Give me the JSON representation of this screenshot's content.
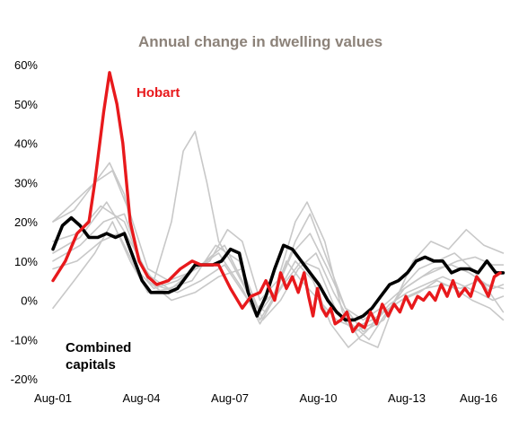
{
  "chart_data": {
    "type": "line",
    "title": "Annual change in dwelling values",
    "xlabel": "",
    "ylabel": "",
    "x_tick_labels": [
      "Aug-01",
      "Aug-04",
      "Aug-07",
      "Aug-10",
      "Aug-13",
      "Aug-16"
    ],
    "x_tick_years": [
      2001.58,
      2004.58,
      2007.58,
      2010.58,
      2013.58,
      2016.58
    ],
    "xlim": [
      2001.58,
      2016.9
    ],
    "y_tick_labels": [
      "60%",
      "50%",
      "40%",
      "30%",
      "20%",
      "10%",
      "0%",
      "-10%",
      "-20%"
    ],
    "ylim": [
      -20,
      60
    ],
    "grid": false,
    "annotations": [
      {
        "text": "Hobart",
        "series": "Hobart",
        "color": "#e8191c"
      },
      {
        "text": "Combined",
        "series": "Combined capitals",
        "color": "#000000"
      },
      {
        "text": "capitals",
        "series": "Combined capitals",
        "color": "#000000"
      }
    ],
    "series": [
      {
        "name": "Hobart",
        "color": "#e8191c",
        "x": [
          2001.58,
          2002.0,
          2002.4,
          2002.8,
          2003.0,
          2003.3,
          2003.5,
          2003.75,
          2003.95,
          2004.2,
          2004.5,
          2004.8,
          2005.1,
          2005.5,
          2005.9,
          2006.3,
          2006.6,
          2006.9,
          2007.2,
          2007.6,
          2008.0,
          2008.3,
          2008.6,
          2008.8,
          2009.1,
          2009.3,
          2009.5,
          2009.7,
          2009.9,
          2010.1,
          2010.25,
          2010.4,
          2010.55,
          2010.7,
          2010.85,
          2011.0,
          2011.15,
          2011.35,
          2011.55,
          2011.75,
          2011.95,
          2012.15,
          2012.35,
          2012.55,
          2012.75,
          2012.95,
          2013.15,
          2013.35,
          2013.55,
          2013.75,
          2013.95,
          2014.15,
          2014.35,
          2014.55,
          2014.75,
          2014.95,
          2015.15,
          2015.35,
          2015.55,
          2015.75,
          2015.95,
          2016.15,
          2016.35,
          2016.55,
          2016.75
        ],
        "values": [
          5,
          10,
          17,
          20,
          30,
          48,
          58,
          50,
          40,
          20,
          10,
          6,
          4,
          5,
          8,
          10,
          9,
          9,
          9,
          3,
          -2,
          1,
          2,
          5,
          0,
          7,
          3,
          6,
          2,
          7,
          1,
          -4,
          3,
          -2,
          -4,
          -2,
          -6,
          -5,
          -3,
          -8,
          -6,
          -7,
          -3,
          -6,
          -1,
          -4,
          -1,
          -3,
          1,
          -2,
          1,
          0,
          2,
          0,
          4,
          1,
          5,
          1,
          3,
          1,
          6,
          4,
          1,
          6,
          7
        ]
      },
      {
        "name": "Combined capitals",
        "color": "#000000",
        "x": [
          2001.58,
          2001.9,
          2002.2,
          2002.5,
          2002.8,
          2003.1,
          2003.4,
          2003.7,
          2004.0,
          2004.3,
          2004.6,
          2004.9,
          2005.2,
          2005.5,
          2005.8,
          2006.1,
          2006.4,
          2006.7,
          2007.0,
          2007.3,
          2007.6,
          2007.9,
          2008.2,
          2008.5,
          2008.8,
          2009.1,
          2009.4,
          2009.7,
          2010.0,
          2010.3,
          2010.6,
          2010.9,
          2011.2,
          2011.5,
          2011.8,
          2012.1,
          2012.4,
          2012.7,
          2013.0,
          2013.3,
          2013.6,
          2013.9,
          2014.2,
          2014.5,
          2014.8,
          2015.1,
          2015.4,
          2015.7,
          2016.0,
          2016.3,
          2016.6,
          2016.85
        ],
        "values": [
          13,
          19,
          21,
          19,
          16,
          16,
          17,
          16,
          17,
          11,
          5,
          2,
          2,
          2,
          3,
          6,
          9,
          9,
          9,
          10,
          13,
          12,
          2,
          -4,
          1,
          8,
          14,
          13,
          10,
          7,
          4,
          0,
          -3,
          -5,
          -5,
          -4,
          -2,
          1,
          4,
          5,
          7,
          10,
          11,
          10,
          10,
          7,
          8,
          8,
          7,
          10,
          7,
          7
        ]
      },
      {
        "name": "",
        "color": "#c8c8c8",
        "x": [
          2001.58,
          2002.3,
          2003.0,
          2003.5,
          2004.0,
          2004.5,
          2005.0,
          2005.6,
          2006.0,
          2006.4,
          2006.8,
          2007.2,
          2007.6,
          2008.1,
          2008.6,
          2009.0,
          2009.5,
          2010.0,
          2010.6,
          2011.2,
          2011.8,
          2012.4,
          2013.0,
          2013.6,
          2014.2,
          2014.8,
          2015.4,
          2016.0,
          2016.5,
          2016.85
        ],
        "values": [
          20,
          25,
          30,
          35,
          27,
          10,
          5,
          20,
          38,
          43,
          30,
          15,
          10,
          3,
          -5,
          0,
          10,
          5,
          0,
          -5,
          -7,
          -5,
          -2,
          1,
          3,
          4,
          3,
          5,
          3,
          4
        ]
      },
      {
        "name": "",
        "color": "#c8c8c8",
        "x": [
          2001.58,
          2002.3,
          2003.0,
          2003.6,
          2004.2,
          2004.8,
          2005.5,
          2006.2,
          2006.9,
          2007.5,
          2008.0,
          2008.6,
          2009.2,
          2009.8,
          2010.2,
          2010.8,
          2011.4,
          2012.0,
          2012.6,
          2013.2,
          2013.8,
          2014.4,
          2015.0,
          2015.6,
          2016.2,
          2016.85
        ],
        "values": [
          20,
          23,
          30,
          33,
          22,
          8,
          5,
          7,
          10,
          18,
          15,
          0,
          5,
          20,
          25,
          15,
          -3,
          -10,
          -12,
          0,
          10,
          15,
          13,
          18,
          14,
          12
        ]
      },
      {
        "name": "",
        "color": "#c8c8c8",
        "x": [
          2001.58,
          2002.4,
          2003.2,
          2003.8,
          2004.4,
          2005.0,
          2005.8,
          2006.6,
          2007.4,
          2008.0,
          2008.6,
          2009.2,
          2009.8,
          2010.3,
          2010.9,
          2011.5,
          2012.1,
          2012.8,
          2013.4,
          2014.0,
          2014.6,
          2015.2,
          2015.8,
          2016.3,
          2016.85
        ],
        "values": [
          8,
          10,
          15,
          17,
          8,
          3,
          5,
          9,
          14,
          5,
          -3,
          3,
          15,
          22,
          10,
          -2,
          -8,
          -5,
          3,
          8,
          10,
          12,
          8,
          3,
          -3
        ]
      },
      {
        "name": "",
        "color": "#c8c8c8",
        "x": [
          2001.58,
          2002.3,
          2003.0,
          2003.6,
          2004.2,
          2004.8,
          2005.6,
          2006.4,
          2007.2,
          2008.0,
          2008.6,
          2009.2,
          2009.8,
          2010.4,
          2011.0,
          2011.6,
          2012.2,
          2012.8,
          2013.4,
          2014.0,
          2014.6,
          2015.2,
          2015.8,
          2016.4,
          2016.85
        ],
        "values": [
          -2,
          5,
          12,
          20,
          10,
          2,
          3,
          8,
          12,
          3,
          -6,
          2,
          10,
          5,
          -6,
          -12,
          -8,
          -3,
          0,
          2,
          5,
          3,
          0,
          -2,
          -5
        ]
      },
      {
        "name": "",
        "color": "#c8c8c8",
        "x": [
          2001.58,
          2002.4,
          2003.2,
          2004.0,
          2004.7,
          2005.5,
          2006.3,
          2007.1,
          2007.9,
          2008.5,
          2009.1,
          2009.7,
          2010.3,
          2010.9,
          2011.5,
          2012.1,
          2012.7,
          2013.3,
          2013.9,
          2014.5,
          2015.1,
          2015.7,
          2016.3,
          2016.85
        ],
        "values": [
          15,
          17,
          24,
          20,
          7,
          3,
          5,
          14,
          10,
          -2,
          2,
          12,
          17,
          8,
          -2,
          -5,
          -2,
          2,
          5,
          8,
          9,
          7,
          4,
          3
        ]
      },
      {
        "name": "",
        "color": "#c8c8c8",
        "x": [
          2001.58,
          2002.5,
          2003.3,
          2004.0,
          2004.8,
          2005.6,
          2006.4,
          2007.2,
          2008.0,
          2008.7,
          2009.3,
          2009.9,
          2010.5,
          2011.1,
          2011.7,
          2012.3,
          2012.9,
          2013.5,
          2014.1,
          2014.7,
          2015.3,
          2015.9,
          2016.5,
          2016.85
        ],
        "values": [
          10,
          14,
          20,
          22,
          5,
          0,
          2,
          6,
          8,
          -5,
          0,
          8,
          12,
          2,
          -6,
          -10,
          -3,
          3,
          6,
          8,
          10,
          11,
          9,
          9
        ]
      },
      {
        "name": "",
        "color": "#c8c8c8",
        "x": [
          2001.58,
          2002.5,
          2003.4,
          2004.2,
          2005.0,
          2005.8,
          2006.6,
          2007.4,
          2008.2,
          2008.8,
          2009.4,
          2010.0,
          2010.6,
          2011.2,
          2011.8,
          2012.4,
          2013.0,
          2013.6,
          2014.2,
          2014.8,
          2015.4,
          2016.0,
          2016.5,
          2016.85
        ],
        "values": [
          12,
          16,
          25,
          15,
          4,
          2,
          5,
          9,
          0,
          -3,
          4,
          10,
          8,
          -3,
          -8,
          -6,
          -1,
          2,
          4,
          6,
          4,
          2,
          0,
          1
        ]
      }
    ]
  }
}
